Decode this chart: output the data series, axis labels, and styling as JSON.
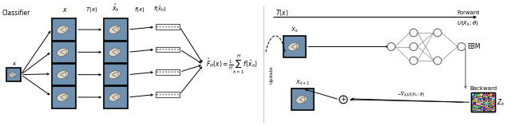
{
  "title": "",
  "bg_color": "#ffffff",
  "left_label": "Classifier",
  "text_x": "x",
  "text_x_hat": "$\\hat{x}_h$",
  "text_Tx": "$T(x)$",
  "text_fx": "$f(x)$",
  "text_fxhat": "$f(\\hat{x}_h)$",
  "text_FH": "$\\hat{F}_H(x) = \\frac{1}{H}\\sum_{h=1}^{H} f(\\hat{x}_h)$",
  "text_Tx_right": "$T(x)$",
  "text_Xk": "$X_k$",
  "text_Xk1": "$X_{k+1}$",
  "text_Update": "Update",
  "text_Forward": "Forward",
  "text_Backward": "Backward",
  "text_EBM": "EBM",
  "text_UXk": "$U(X_k; \\theta)$",
  "text_grad": "$-\\nabla_{X_k} U(X_k; \\theta)$",
  "text_Zk": "$Z_k$"
}
